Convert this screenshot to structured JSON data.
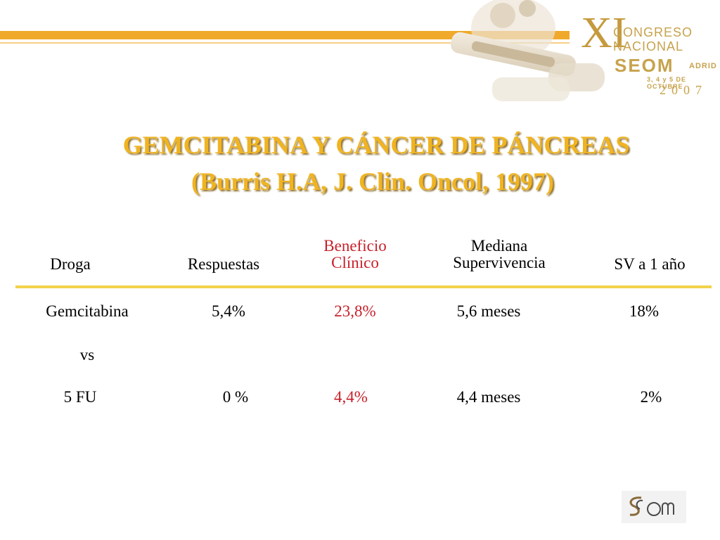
{
  "logo": {
    "roman": "XI",
    "line1": "CONGRESO",
    "line2": "NACIONAL",
    "seom": "SEOM",
    "madrid": "ADRID",
    "dates": "3, 4 y 5 DE OCTUBRE",
    "year": "2007",
    "colors": {
      "gold": "#c7a24c",
      "bar": "#f0a92a"
    }
  },
  "title": {
    "line1": "GEMCITABINA Y CÁNCER DE PÁNCREAS",
    "line2": "(Burris H.A, J. Clin. Oncol, 1997)",
    "color": "#f0b421"
  },
  "table": {
    "headers": {
      "droga": "Droga",
      "respuestas": "Respuestas",
      "beneficio_1": "Beneficio",
      "beneficio_2": "Clínico",
      "mediana_1": "Mediana",
      "mediana_2": "Supervivencia",
      "sv": "SV a 1 año"
    },
    "rows": [
      {
        "droga": "Gemcitabina",
        "respuestas": "5,4%",
        "beneficio": "23,8%",
        "mediana": "5,6 meses",
        "sv": "18%"
      },
      {
        "droga": "vs"
      },
      {
        "droga": "5 FU",
        "respuestas": "0 %",
        "beneficio": "4,4%",
        "mediana": "4,4 meses",
        "sv": "2%"
      }
    ],
    "accent_color": "#c8202a"
  }
}
